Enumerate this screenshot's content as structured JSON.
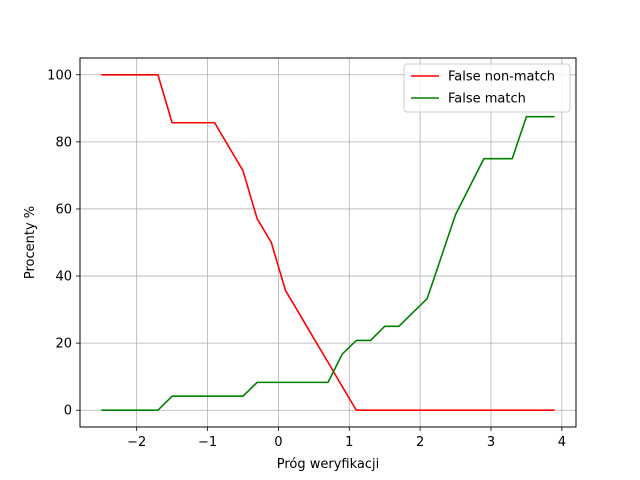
{
  "chart_data": {
    "type": "line",
    "title": "",
    "xlabel": "Próg weryfikacji",
    "ylabel": "Procenty %",
    "xlim": [
      -2.8,
      4.2
    ],
    "ylim": [
      -5,
      105
    ],
    "xticks": [
      -2,
      -1,
      0,
      1,
      2,
      3,
      4
    ],
    "xtick_labels": [
      "−2",
      "−1",
      "0",
      "1",
      "2",
      "3",
      "4"
    ],
    "yticks": [
      0,
      20,
      40,
      60,
      80,
      100
    ],
    "ytick_labels": [
      "0",
      "20",
      "40",
      "60",
      "80",
      "100"
    ],
    "grid": true,
    "legend_position": "top-right",
    "series": [
      {
        "name": "False non-match",
        "color": "#ff0000",
        "x": [
          -2.5,
          -1.7,
          -1.5,
          -0.9,
          -0.5,
          -0.3,
          -0.1,
          0.1,
          0.3,
          0.5,
          0.7,
          0.9,
          1.1,
          1.3,
          3.9
        ],
        "y": [
          100,
          100,
          85.7,
          85.7,
          71.4,
          57.1,
          50.0,
          35.7,
          28.6,
          21.4,
          14.3,
          7.1,
          0,
          0,
          0
        ]
      },
      {
        "name": "False match",
        "color": "#008000",
        "x": [
          -2.5,
          -1.7,
          -1.5,
          -0.5,
          -0.3,
          0.7,
          0.9,
          1.1,
          1.3,
          1.5,
          1.7,
          2.1,
          2.5,
          2.9,
          3.3,
          3.5,
          3.9
        ],
        "y": [
          0,
          0,
          4.2,
          4.2,
          8.3,
          8.3,
          16.7,
          20.8,
          20.8,
          25.0,
          25.0,
          33.3,
          58.3,
          75.0,
          75.0,
          87.5,
          87.5
        ]
      }
    ]
  }
}
